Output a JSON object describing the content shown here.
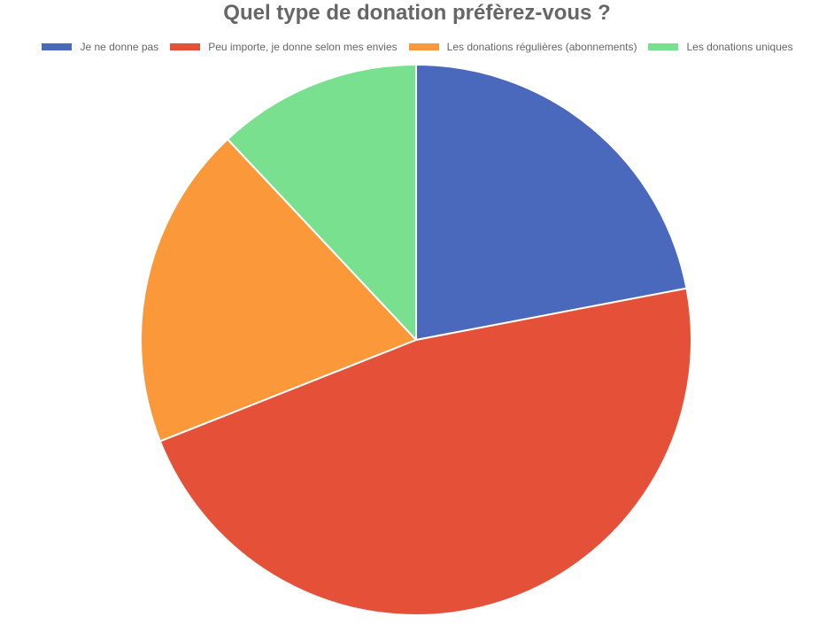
{
  "chart_data": {
    "type": "pie",
    "title": "Quel type de donation préfèrez-vous ?",
    "legend_position": "top",
    "categories": [
      "Je ne donne pas",
      "Peu importe, je donne selon mes envies",
      "Les donations régulières (abonnements)",
      "Les donations uniques"
    ],
    "values": [
      22,
      47,
      19,
      12
    ],
    "colors": [
      "#4a69bd",
      "#e55039",
      "#fa983a",
      "#78e08f"
    ],
    "start_angle": "top",
    "direction": "clockwise"
  }
}
